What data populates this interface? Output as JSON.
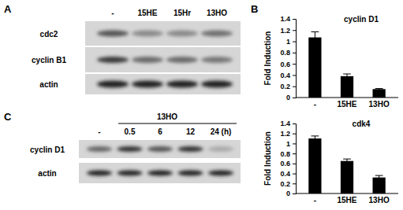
{
  "chart_data": [
    {
      "type": "bar",
      "title": "cyclin D1",
      "y_label": "Fold Induction",
      "categories": [
        "-",
        "15HE",
        "13HO"
      ],
      "values": [
        1.07,
        0.38,
        0.15
      ],
      "errors": [
        0.1,
        0.04,
        0.01
      ],
      "color": "#000000",
      "ylim": [
        0,
        1.4
      ],
      "yticks": [
        0,
        0.2,
        0.4,
        0.6,
        0.8,
        1,
        1.2,
        1.4
      ]
    },
    {
      "type": "bar",
      "title": "cdk4",
      "y_label": "Fold Induction",
      "categories": [
        "-",
        "15HE",
        "13HO"
      ],
      "values": [
        1.1,
        0.65,
        0.32
      ],
      "errors": [
        0.05,
        0.04,
        0.04
      ],
      "color": "#000000",
      "ylim": [
        0,
        1.4
      ],
      "yticks": [
        0,
        0.2,
        0.4,
        0.6,
        0.8,
        1,
        1.2,
        1.4
      ]
    }
  ],
  "panels": {
    "A": {
      "label": "A",
      "lanes": [
        "-",
        "15HE",
        "15Hr",
        "13HO"
      ],
      "rows": [
        "cdc2",
        "cyclin B1",
        "actin"
      ]
    },
    "B": {
      "label": "B"
    },
    "C": {
      "label": "C",
      "treatment": "13HO",
      "lanes": [
        "-",
        "0.5",
        "6",
        "12",
        "24 (h)"
      ],
      "rows": [
        "cyclin D1",
        "actin"
      ]
    }
  }
}
